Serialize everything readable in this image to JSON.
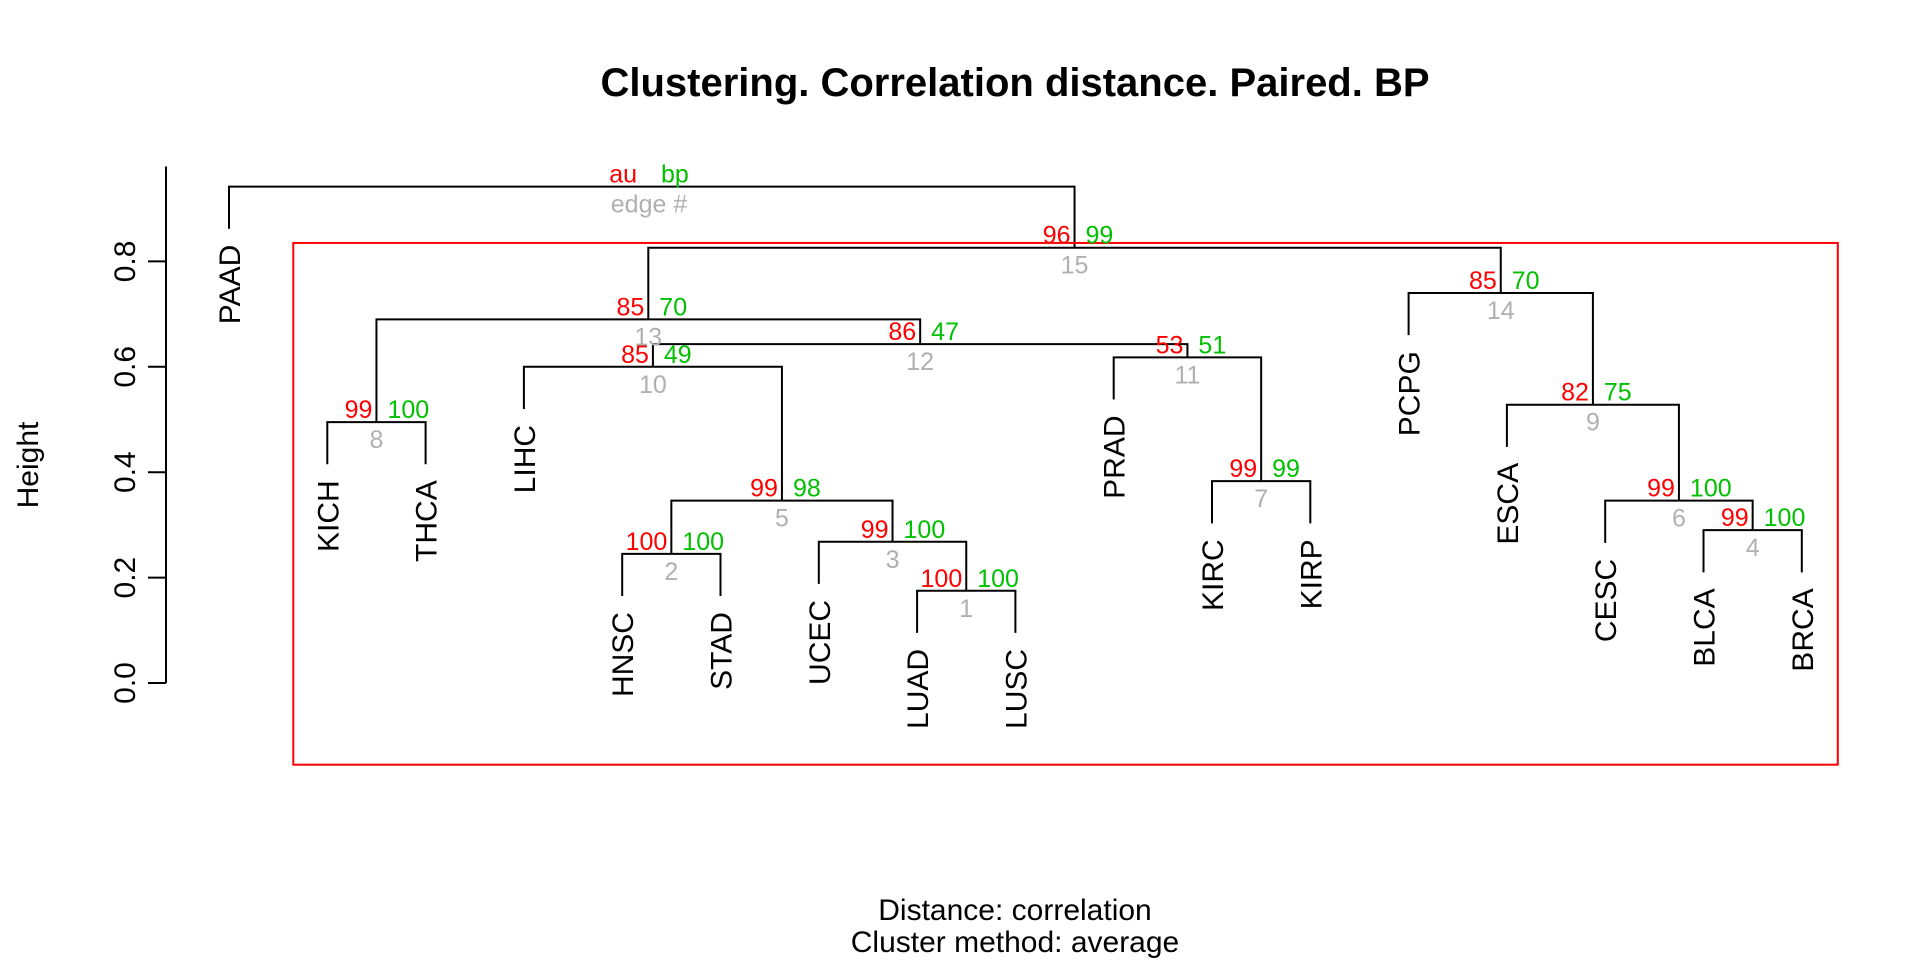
{
  "chart_data": {
    "type": "dendrogram",
    "title": "Clustering. Correlation distance. Paired. BP",
    "ylabel": "Height",
    "xlabel_lines": [
      "Distance:  correlation",
      "Cluster method: average"
    ],
    "ylim": [
      0,
      0.9
    ],
    "yticks": [
      "0.0",
      "0.2",
      "0.4",
      "0.6",
      "0.8"
    ],
    "ytick_values": [
      0,
      0.2,
      0.4,
      0.6,
      0.8
    ],
    "legend": {
      "au": "au",
      "bp": "bp",
      "edge": "edge #"
    },
    "colors": {
      "au": "#ff0000",
      "bp": "#00c000",
      "edge": "#b0b0b0",
      "tree": "#000000",
      "rect": "#ff0000"
    },
    "leaves": [
      "PAAD",
      "KICH",
      "THCA",
      "LIHC",
      "HNSC",
      "STAD",
      "UCEC",
      "LUAD",
      "LUSC",
      "PRAD",
      "KIRC",
      "KIRP",
      "PCPG",
      "ESCA",
      "CESC",
      "BLCA",
      "BRCA"
    ],
    "merges": [
      {
        "edge": "1",
        "left": "L:LUAD",
        "right": "L:LUSC",
        "height": 0.175,
        "au": "100",
        "bp": "100"
      },
      {
        "edge": "2",
        "left": "L:HNSC",
        "right": "L:STAD",
        "height": 0.245,
        "au": "100",
        "bp": "100"
      },
      {
        "edge": "3",
        "left": "L:UCEC",
        "right": "E:1",
        "height": 0.268,
        "au": "99",
        "bp": "100"
      },
      {
        "edge": "4",
        "left": "L:BLCA",
        "right": "L:BRCA",
        "height": 0.29,
        "au": "99",
        "bp": "100"
      },
      {
        "edge": "5",
        "left": "E:2",
        "right": "E:3",
        "height": 0.346,
        "au": "99",
        "bp": "98"
      },
      {
        "edge": "6",
        "left": "L:CESC",
        "right": "E:4",
        "height": 0.346,
        "au": "99",
        "bp": "100"
      },
      {
        "edge": "7",
        "left": "L:KIRC",
        "right": "L:KIRP",
        "height": 0.383,
        "au": "99",
        "bp": "99"
      },
      {
        "edge": "8",
        "left": "L:KICH",
        "right": "L:THCA",
        "height": 0.495,
        "au": "99",
        "bp": "100"
      },
      {
        "edge": "9",
        "left": "L:ESCA",
        "right": "E:6",
        "height": 0.528,
        "au": "82",
        "bp": "75"
      },
      {
        "edge": "10",
        "left": "L:LIHC",
        "right": "E:5",
        "height": 0.6,
        "au": "85",
        "bp": "49"
      },
      {
        "edge": "11",
        "left": "L:PRAD",
        "right": "E:7",
        "height": 0.618,
        "au": "53",
        "bp": "51"
      },
      {
        "edge": "12",
        "left": "E:10",
        "right": "E:11",
        "height": 0.643,
        "au": "86",
        "bp": "47"
      },
      {
        "edge": "13",
        "left": "E:8",
        "right": "E:12",
        "height": 0.69,
        "au": "85",
        "bp": "70"
      },
      {
        "edge": "14",
        "left": "L:PCPG",
        "right": "E:9",
        "height": 0.74,
        "au": "85",
        "bp": "70"
      },
      {
        "edge": "15",
        "left": "E:13",
        "right": "E:14",
        "height": 0.826,
        "au": "96",
        "bp": "99"
      },
      {
        "edge": "",
        "left": "L:PAAD",
        "right": "E:15",
        "height": 0.942,
        "au": "au",
        "bp": "bp"
      }
    ],
    "highlight_box": {
      "leaves_from": "KICH",
      "leaves_to": "BRCA",
      "color": "#ff0000"
    }
  }
}
